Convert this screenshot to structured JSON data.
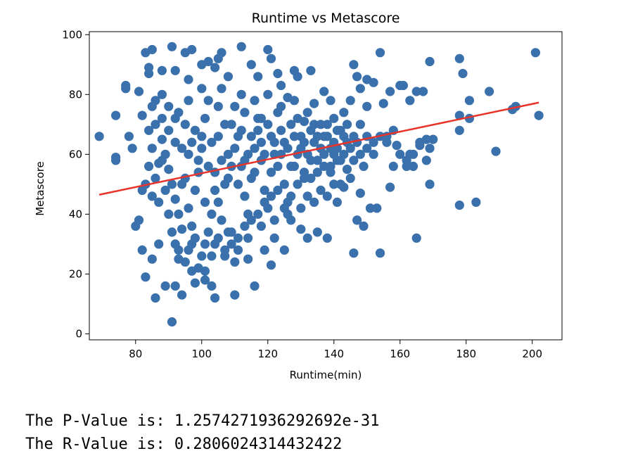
{
  "chart_data": {
    "type": "scatter",
    "title": "Runtime vs Metascore",
    "xlabel": "Runtime(min)",
    "ylabel": "Metascore",
    "xlim": [
      66,
      209
    ],
    "ylim": [
      -2,
      101
    ],
    "xticks": [
      80,
      100,
      120,
      140,
      160,
      180,
      200
    ],
    "yticks": [
      0,
      20,
      40,
      60,
      80,
      100
    ],
    "grid": false,
    "legend": "none",
    "colors": {
      "points": "#3a70ab",
      "regression_line": "#e8332a"
    },
    "regression_line": {
      "x": [
        69,
        202
      ],
      "y": [
        46.5,
        77.3
      ]
    },
    "series": [
      {
        "values": [
          [
            69,
            66
          ],
          [
            74,
            73
          ],
          [
            74,
            59
          ],
          [
            74,
            58
          ],
          [
            77,
            82
          ],
          [
            77,
            83
          ],
          [
            78,
            66
          ],
          [
            79,
            62
          ],
          [
            80,
            36
          ],
          [
            81,
            38
          ],
          [
            81,
            81
          ],
          [
            82,
            73
          ],
          [
            82,
            48
          ],
          [
            82,
            28
          ],
          [
            83,
            19
          ],
          [
            83,
            94
          ],
          [
            85,
            95
          ],
          [
            84,
            89
          ],
          [
            84,
            87
          ],
          [
            85,
            76
          ],
          [
            85,
            25
          ],
          [
            86,
            12
          ],
          [
            87,
            57
          ],
          [
            87,
            30
          ],
          [
            88,
            80
          ],
          [
            88,
            88
          ],
          [
            89,
            16
          ],
          [
            91,
            4
          ],
          [
            91,
            96
          ],
          [
            92,
            16
          ],
          [
            92,
            88
          ],
          [
            93,
            74
          ],
          [
            93,
            25
          ],
          [
            94,
            13
          ],
          [
            95,
            94
          ],
          [
            96,
            85
          ],
          [
            96,
            28
          ],
          [
            97,
            95
          ],
          [
            97,
            21
          ],
          [
            98,
            17
          ],
          [
            100,
            82
          ],
          [
            100,
            90
          ],
          [
            101,
            18
          ],
          [
            101,
            21
          ],
          [
            102,
            91
          ],
          [
            103,
            16
          ],
          [
            104,
            12
          ],
          [
            104,
            89
          ],
          [
            105,
            92
          ],
          [
            105,
            76
          ],
          [
            106,
            94
          ],
          [
            107,
            28
          ],
          [
            108,
            86
          ],
          [
            109,
            30
          ],
          [
            110,
            13
          ],
          [
            111,
            28
          ],
          [
            112,
            96
          ],
          [
            113,
            74
          ],
          [
            114,
            25
          ],
          [
            115,
            90
          ],
          [
            116,
            16
          ],
          [
            117,
            86
          ],
          [
            118,
            72
          ],
          [
            119,
            28
          ],
          [
            120,
            95
          ],
          [
            121,
            92
          ],
          [
            121,
            23
          ],
          [
            122,
            32
          ],
          [
            123,
            87
          ],
          [
            124,
            83
          ],
          [
            125,
            28
          ],
          [
            126,
            79
          ],
          [
            127,
            38
          ],
          [
            128,
            88
          ],
          [
            129,
            86
          ],
          [
            130,
            35
          ],
          [
            131,
            71
          ],
          [
            132,
            32
          ],
          [
            133,
            88
          ],
          [
            134,
            77
          ],
          [
            135,
            34
          ],
          [
            137,
            81
          ],
          [
            138,
            32
          ],
          [
            139,
            78
          ],
          [
            140,
            60
          ],
          [
            141,
            44
          ],
          [
            142,
            68
          ],
          [
            143,
            49
          ],
          [
            144,
            55
          ],
          [
            145,
            62
          ],
          [
            146,
            90
          ],
          [
            146,
            27
          ],
          [
            147,
            86
          ],
          [
            147,
            38
          ],
          [
            148,
            47
          ],
          [
            148,
            82
          ],
          [
            149,
            36
          ],
          [
            150,
            85
          ],
          [
            150,
            76
          ],
          [
            151,
            42
          ],
          [
            152,
            84
          ],
          [
            152,
            60
          ],
          [
            153,
            42
          ],
          [
            154,
            94
          ],
          [
            154,
            27
          ],
          [
            155,
            77
          ],
          [
            156,
            66
          ],
          [
            157,
            81
          ],
          [
            157,
            49
          ],
          [
            158,
            68
          ],
          [
            159,
            63
          ],
          [
            160,
            83
          ],
          [
            161,
            83
          ],
          [
            162,
            56
          ],
          [
            163,
            78
          ],
          [
            163,
            60
          ],
          [
            164,
            56
          ],
          [
            165,
            81
          ],
          [
            165,
            32
          ],
          [
            166,
            63
          ],
          [
            167,
            81
          ],
          [
            168,
            65
          ],
          [
            169,
            91
          ],
          [
            169,
            62
          ],
          [
            169,
            50
          ],
          [
            170,
            65
          ],
          [
            178,
            92
          ],
          [
            178,
            73
          ],
          [
            178,
            68
          ],
          [
            178,
            43
          ],
          [
            179,
            87
          ],
          [
            181,
            78
          ],
          [
            181,
            72
          ],
          [
            183,
            44
          ],
          [
            187,
            81
          ],
          [
            189,
            61
          ],
          [
            194,
            75
          ],
          [
            195,
            76
          ],
          [
            201,
            94
          ],
          [
            202,
            73
          ],
          [
            86,
            70
          ],
          [
            88,
            65
          ],
          [
            89,
            60
          ],
          [
            90,
            55
          ],
          [
            91,
            50
          ],
          [
            92,
            45
          ],
          [
            93,
            40
          ],
          [
            94,
            35
          ],
          [
            90,
            68
          ],
          [
            92,
            72
          ],
          [
            94,
            62
          ],
          [
            95,
            52
          ],
          [
            96,
            42
          ],
          [
            97,
            36
          ],
          [
            98,
            48
          ],
          [
            99,
            58
          ],
          [
            100,
            66
          ],
          [
            101,
            72
          ],
          [
            102,
            78
          ],
          [
            103,
            64
          ],
          [
            104,
            54
          ],
          [
            105,
            44
          ],
          [
            106,
            38
          ],
          [
            107,
            50
          ],
          [
            108,
            60
          ],
          [
            109,
            70
          ],
          [
            110,
            76
          ],
          [
            111,
            66
          ],
          [
            112,
            56
          ],
          [
            113,
            46
          ],
          [
            114,
            40
          ],
          [
            115,
            52
          ],
          [
            116,
            62
          ],
          [
            117,
            68
          ],
          [
            118,
            58
          ],
          [
            119,
            48
          ],
          [
            120,
            42
          ],
          [
            121,
            54
          ],
          [
            122,
            64
          ],
          [
            123,
            74
          ],
          [
            124,
            60
          ],
          [
            125,
            50
          ],
          [
            126,
            44
          ],
          [
            127,
            56
          ],
          [
            128,
            66
          ],
          [
            129,
            72
          ],
          [
            130,
            62
          ],
          [
            131,
            52
          ],
          [
            132,
            46
          ],
          [
            133,
            58
          ],
          [
            134,
            64
          ],
          [
            135,
            54
          ],
          [
            136,
            48
          ],
          [
            137,
            60
          ],
          [
            138,
            66
          ],
          [
            139,
            56
          ],
          [
            140,
            50
          ],
          [
            141,
            62
          ],
          [
            142,
            58
          ],
          [
            143,
            66
          ],
          [
            96,
            78
          ],
          [
            98,
            32
          ],
          [
            100,
            26
          ],
          [
            102,
            34
          ],
          [
            104,
            30
          ],
          [
            106,
            82
          ],
          [
            108,
            34
          ],
          [
            110,
            24
          ],
          [
            112,
            80
          ],
          [
            114,
            32
          ],
          [
            116,
            78
          ],
          [
            118,
            36
          ],
          [
            120,
            80
          ],
          [
            122,
            38
          ],
          [
            124,
            76
          ],
          [
            126,
            40
          ],
          [
            128,
            78
          ],
          [
            130,
            42
          ],
          [
            132,
            74
          ],
          [
            134,
            44
          ],
          [
            136,
            70
          ],
          [
            138,
            46
          ],
          [
            140,
            72
          ],
          [
            142,
            50
          ],
          [
            144,
            70
          ],
          [
            145,
            52
          ],
          [
            146,
            58
          ],
          [
            147,
            64
          ],
          [
            148,
            70
          ],
          [
            150,
            66
          ],
          [
            88,
            58
          ],
          [
            89,
            48
          ],
          [
            90,
            40
          ],
          [
            91,
            34
          ],
          [
            87,
            44
          ],
          [
            86,
            52
          ],
          [
            85,
            62
          ],
          [
            84,
            68
          ],
          [
            84,
            56
          ],
          [
            83,
            50
          ],
          [
            85,
            46
          ],
          [
            92,
            30
          ],
          [
            93,
            28
          ],
          [
            95,
            24
          ],
          [
            97,
            30
          ],
          [
            99,
            22
          ],
          [
            101,
            30
          ],
          [
            103,
            26
          ],
          [
            105,
            32
          ],
          [
            107,
            26
          ],
          [
            109,
            34
          ],
          [
            111,
            32
          ],
          [
            113,
            36
          ],
          [
            115,
            38
          ],
          [
            117,
            40
          ],
          [
            119,
            44
          ],
          [
            121,
            46
          ],
          [
            123,
            48
          ],
          [
            125,
            42
          ],
          [
            127,
            46
          ],
          [
            129,
            50
          ],
          [
            131,
            54
          ],
          [
            133,
            52
          ],
          [
            135,
            58
          ],
          [
            137,
            56
          ],
          [
            139,
            62
          ],
          [
            141,
            68
          ],
          [
            143,
            74
          ],
          [
            145,
            78
          ],
          [
            100,
            62
          ],
          [
            102,
            56
          ],
          [
            104,
            48
          ],
          [
            106,
            58
          ],
          [
            108,
            52
          ],
          [
            110,
            62
          ],
          [
            112,
            68
          ],
          [
            114,
            60
          ],
          [
            116,
            54
          ],
          [
            118,
            64
          ],
          [
            120,
            70
          ],
          [
            122,
            60
          ],
          [
            124,
            68
          ],
          [
            126,
            62
          ],
          [
            128,
            56
          ],
          [
            130,
            66
          ],
          [
            132,
            60
          ],
          [
            134,
            70
          ],
          [
            136,
            62
          ],
          [
            138,
            70
          ],
          [
            140,
            64
          ],
          [
            98,
            68
          ],
          [
            96,
            60
          ],
          [
            94,
            50
          ],
          [
            92,
            64
          ],
          [
            90,
            76
          ],
          [
            88,
            72
          ],
          [
            86,
            78
          ],
          [
            95,
            70
          ],
          [
            97,
            64
          ],
          [
            99,
            54
          ],
          [
            101,
            44
          ],
          [
            103,
            40
          ],
          [
            105,
            66
          ],
          [
            107,
            70
          ],
          [
            109,
            56
          ],
          [
            111,
            50
          ],
          [
            113,
            58
          ],
          [
            115,
            66
          ],
          [
            117,
            72
          ],
          [
            119,
            60
          ],
          [
            121,
            66
          ],
          [
            123,
            56
          ],
          [
            125,
            64
          ],
          [
            127,
            70
          ],
          [
            129,
            60
          ],
          [
            131,
            64
          ],
          [
            133,
            68
          ],
          [
            135,
            66
          ],
          [
            137,
            66
          ],
          [
            139,
            54
          ],
          [
            141,
            58
          ],
          [
            143,
            60
          ],
          [
            144,
            64
          ],
          [
            146,
            66
          ],
          [
            148,
            60
          ],
          [
            149,
            56
          ],
          [
            150,
            62
          ],
          [
            152,
            64
          ],
          [
            154,
            66
          ],
          [
            156,
            64
          ],
          [
            158,
            56
          ],
          [
            160,
            60
          ],
          [
            162,
            58
          ],
          [
            164,
            60
          ],
          [
            166,
            64
          ],
          [
            168,
            58
          ]
        ]
      }
    ]
  },
  "output": {
    "p_value_line": "The P-Value is: 1.2574271936292692e-31",
    "r_value_line": "The R-Value is: 0.2806024314432422"
  }
}
